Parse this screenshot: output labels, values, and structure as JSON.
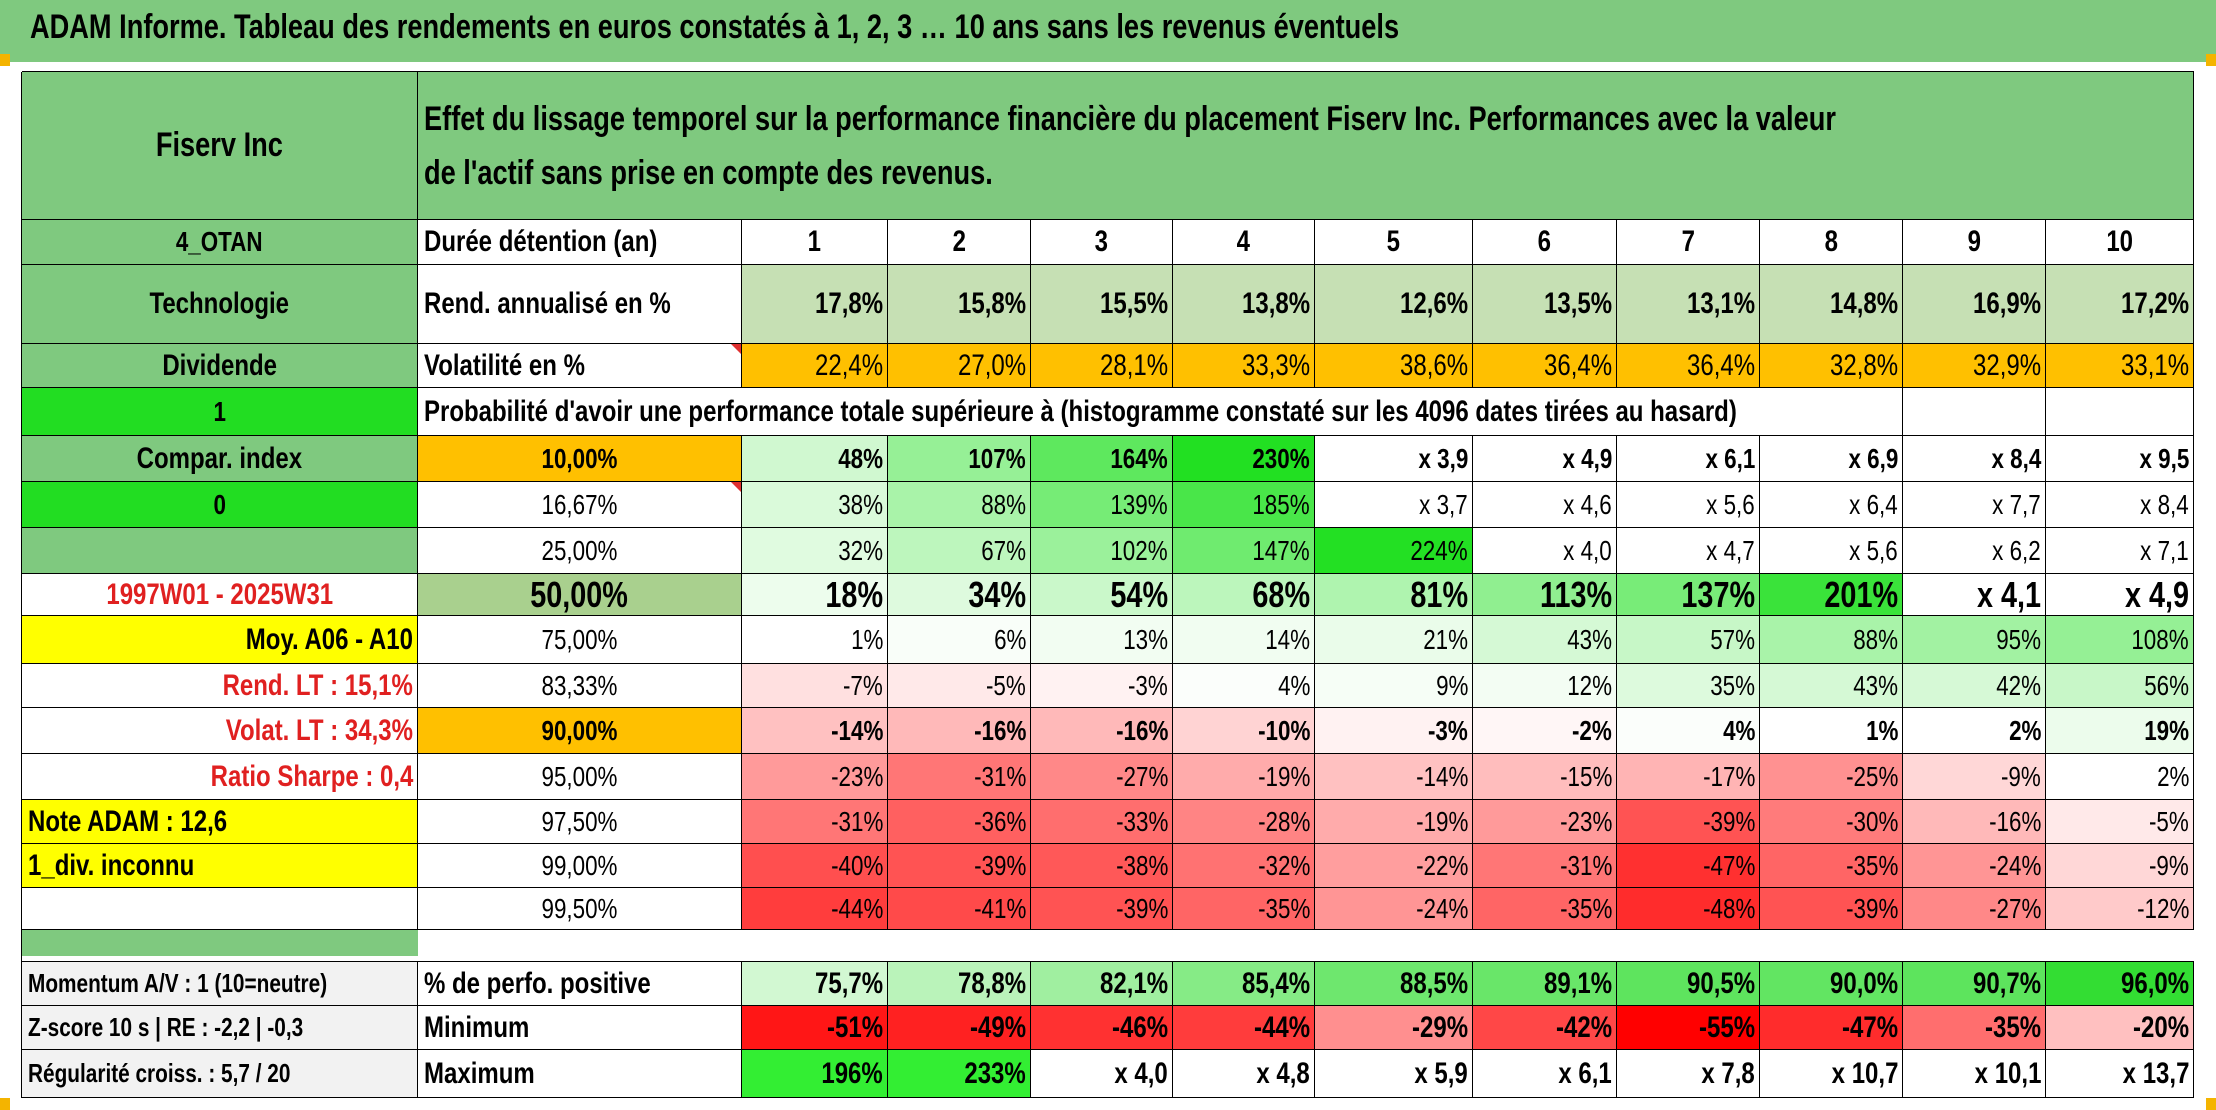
{
  "title": "ADAM Informe. Tableau des rendements en euros constatés à 1, 2, 3 … 10 ans sans les revenus éventuels",
  "description": "Effet du lissage temporel sur la performance financière du placement Fiserv Inc. Performances avec la valeur de l'actif sans prise en compte des revenus.",
  "info": {
    "company": "Fiserv Inc",
    "code": "4_OTAN",
    "sector": "Technologie",
    "dividend": "Dividende",
    "one": "1",
    "compar_index": "Compar. index",
    "zero": "0",
    "period": "1997W01 - 2025W31",
    "moy": "Moy. A06 - A10",
    "rend_lt": "Rend. LT :   15,1%",
    "volat_lt": "Volat. LT :   34,3%",
    "ratio_sharpe": "Ratio Sharpe :    0,4",
    "note_adam": "Note ADAM : 12,6",
    "div_inconnu": "1_div. inconnu",
    "momentum": "Momentum A/V : 1 (10=neutre)",
    "zscore": "Z-score 10 s | RE : -2,2 | -0,3",
    "regularite": "Régularité croiss. : 5,7 / 20"
  },
  "header": {
    "duration_label": "Durée détention (an)",
    "years": [
      "1",
      "2",
      "3",
      "4",
      "5",
      "6",
      "7",
      "8",
      "9",
      "10"
    ],
    "rend_label": "Rend. annualisé en %",
    "rend": [
      "17,8%",
      "15,8%",
      "15,5%",
      "13,8%",
      "12,6%",
      "13,5%",
      "13,1%",
      "14,8%",
      "16,9%",
      "17,2%"
    ],
    "vol_label": "Volatilité en %",
    "vol": [
      "22,4%",
      "27,0%",
      "28,1%",
      "33,3%",
      "38,6%",
      "36,4%",
      "36,4%",
      "32,8%",
      "32,9%",
      "33,1%"
    ],
    "prob_label": "Probabilité d'avoir une performance totale supérieure à (histogramme constaté sur les 4096 dates tirées au hasard)"
  },
  "table": {
    "rows": [
      {
        "label": "10,00%",
        "cells": [
          "48%",
          "107%",
          "164%",
          "230%",
          "x 3,9",
          "x 4,9",
          "x 6,1",
          "x 6,9",
          "x 8,4",
          "x 9,5"
        ]
      },
      {
        "label": "16,67%",
        "cells": [
          "38%",
          "88%",
          "139%",
          "185%",
          "x 3,7",
          "x 4,6",
          "x 5,6",
          "x 6,4",
          "x 7,7",
          "x 8,4"
        ]
      },
      {
        "label": "25,00%",
        "cells": [
          "32%",
          "67%",
          "102%",
          "147%",
          "224%",
          "x 4,0",
          "x 4,7",
          "x 5,6",
          "x 6,2",
          "x 7,1"
        ]
      },
      {
        "label": "50,00%",
        "cells": [
          "18%",
          "34%",
          "54%",
          "68%",
          "81%",
          "113%",
          "137%",
          "201%",
          "x 4,1",
          "x 4,9"
        ]
      },
      {
        "label": "75,00%",
        "cells": [
          "1%",
          "6%",
          "13%",
          "14%",
          "21%",
          "43%",
          "57%",
          "88%",
          "95%",
          "108%"
        ]
      },
      {
        "label": "83,33%",
        "cells": [
          "-7%",
          "-5%",
          "-3%",
          "4%",
          "9%",
          "12%",
          "35%",
          "43%",
          "42%",
          "56%"
        ]
      },
      {
        "label": "90,00%",
        "cells": [
          "-14%",
          "-16%",
          "-16%",
          "-10%",
          "-3%",
          "-2%",
          "4%",
          "1%",
          "2%",
          "19%"
        ]
      },
      {
        "label": "95,00%",
        "cells": [
          "-23%",
          "-31%",
          "-27%",
          "-19%",
          "-14%",
          "-15%",
          "-17%",
          "-25%",
          "-9%",
          "2%"
        ]
      },
      {
        "label": "97,50%",
        "cells": [
          "-31%",
          "-36%",
          "-33%",
          "-28%",
          "-19%",
          "-23%",
          "-39%",
          "-30%",
          "-16%",
          "-5%"
        ]
      },
      {
        "label": "99,00%",
        "cells": [
          "-40%",
          "-39%",
          "-38%",
          "-32%",
          "-22%",
          "-31%",
          "-47%",
          "-35%",
          "-24%",
          "-9%"
        ]
      },
      {
        "label": "99,50%",
        "cells": [
          "-44%",
          "-41%",
          "-39%",
          "-35%",
          "-24%",
          "-35%",
          "-48%",
          "-39%",
          "-27%",
          "-12%"
        ]
      }
    ]
  },
  "bottom": {
    "pos_label": "% de perfo. positive",
    "pos": [
      "75,7%",
      "78,8%",
      "82,1%",
      "85,4%",
      "88,5%",
      "89,1%",
      "90,5%",
      "90,0%",
      "90,7%",
      "96,0%"
    ],
    "min_label": "Minimum",
    "min": [
      "-51%",
      "-49%",
      "-46%",
      "-44%",
      "-29%",
      "-42%",
      "-55%",
      "-47%",
      "-35%",
      "-20%"
    ],
    "max_label": "Maximum",
    "max": [
      "196%",
      "233%",
      "x 4,0",
      "x 4,8",
      "x 5,9",
      "x 6,1",
      "x 7,8",
      "x 10,7",
      "x 10,1",
      "x 13,7"
    ]
  },
  "colors": {
    "title_green": "#7fc97f",
    "header_green": "#7fc97f",
    "bright_green": "#22dd22",
    "yellow": "#ffff00",
    "orange": "#ffc000",
    "label_red": "#e02020",
    "rend_green": "#c6e0b4"
  }
}
